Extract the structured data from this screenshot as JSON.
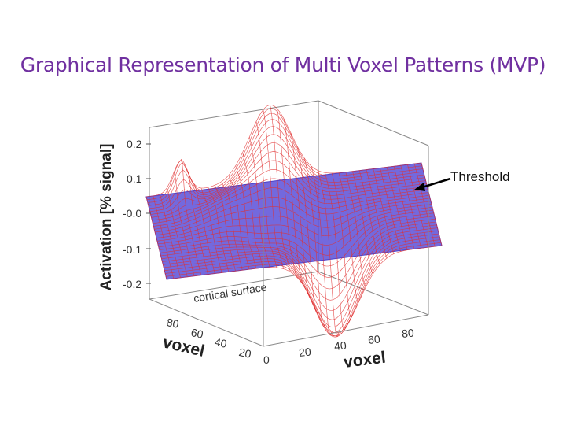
{
  "title": "Graphical Representation of Multi Voxel Patterns (MVP)",
  "chart_data": {
    "type": "surface",
    "zlabel": "Activation [% signal]",
    "xlabel": "voxel",
    "ylabel": "voxel",
    "floor_label": "cortical surface",
    "z_ticks": [
      "0.2",
      "0.1",
      "-0.0",
      "-0.1",
      "-0.2"
    ],
    "x_ticks": [
      "0",
      "20",
      "40",
      "60",
      "80"
    ],
    "y_ticks": [
      "80",
      "60",
      "40",
      "20"
    ],
    "annotation": "Threshold",
    "threshold_level": 0,
    "colors": {
      "surface": "#e03030",
      "plane": "#5a4fd8",
      "box": "#888888",
      "arrow": "#000000"
    }
  }
}
